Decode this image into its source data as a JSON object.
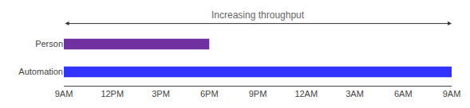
{
  "chart_data": {
    "type": "bar",
    "orientation": "horizontal",
    "categories": [
      "Person",
      "Automation"
    ],
    "values": [
      9,
      24
    ],
    "colors": [
      "#7030A0",
      "#3333FF"
    ],
    "xlim": [
      0,
      24
    ],
    "xticks": [
      {
        "value": 0,
        "label": "9AM"
      },
      {
        "value": 3,
        "label": "12PM"
      },
      {
        "value": 6,
        "label": "3PM"
      },
      {
        "value": 9,
        "label": "6PM"
      },
      {
        "value": 12,
        "label": "9PM"
      },
      {
        "value": 15,
        "label": "12AM"
      },
      {
        "value": 18,
        "label": "3AM"
      },
      {
        "value": 21,
        "label": "6AM"
      },
      {
        "value": 24,
        "label": "9AM"
      }
    ],
    "annotation": "Increasing throughput",
    "grid": false
  }
}
